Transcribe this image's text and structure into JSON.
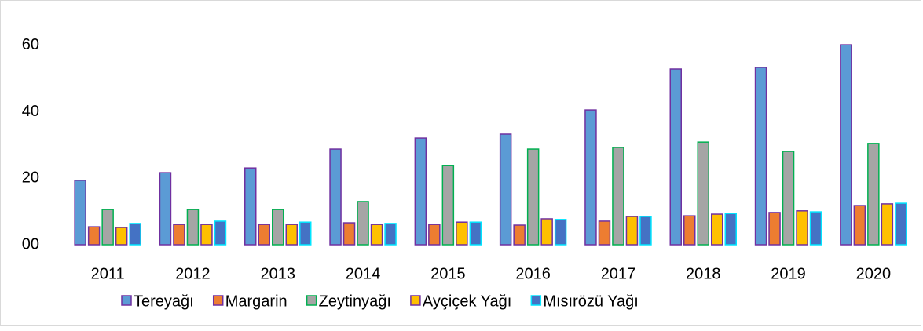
{
  "chart_data": {
    "type": "bar",
    "categories": [
      "2011",
      "2012",
      "2013",
      "2014",
      "2015",
      "2016",
      "2017",
      "2018",
      "2019",
      "2020"
    ],
    "series": [
      {
        "name": "Tereyağı",
        "color": "#5b9bd5",
        "edge_color": "#7030a0",
        "values": [
          19.4,
          21.7,
          23.1,
          28.8,
          32.1,
          33.3,
          40.6,
          52.9,
          53.4,
          60.2
        ]
      },
      {
        "name": "Margarin",
        "color": "#ed7d31",
        "edge_color": "#7030a0",
        "values": [
          5.4,
          6.1,
          6.1,
          6.6,
          6.1,
          5.9,
          7.1,
          8.7,
          9.7,
          11.8
        ]
      },
      {
        "name": "Zeytinyağı",
        "color": "#a5a5a5",
        "edge_color": "#00b050",
        "values": [
          10.6,
          10.6,
          10.6,
          13.0,
          23.8,
          28.8,
          29.3,
          30.9,
          28.1,
          30.5
        ]
      },
      {
        "name": "Ayçiçek Yağı",
        "color": "#ffc000",
        "edge_color": "#7030a0",
        "values": [
          5.2,
          6.1,
          6.1,
          6.1,
          6.8,
          7.8,
          8.5,
          9.2,
          10.2,
          12.3
        ]
      },
      {
        "name": "Mısırözü Yağı",
        "color": "#4472c4",
        "edge_color": "#00e5ff",
        "values": [
          6.4,
          7.1,
          6.8,
          6.4,
          6.8,
          7.6,
          8.5,
          9.4,
          9.9,
          12.5
        ]
      }
    ],
    "ylim": [
      0,
      70
    ],
    "yticks": [
      {
        "value": 0,
        "label": "00"
      },
      20,
      40,
      60
    ],
    "grid": false,
    "legend": "bottom"
  }
}
